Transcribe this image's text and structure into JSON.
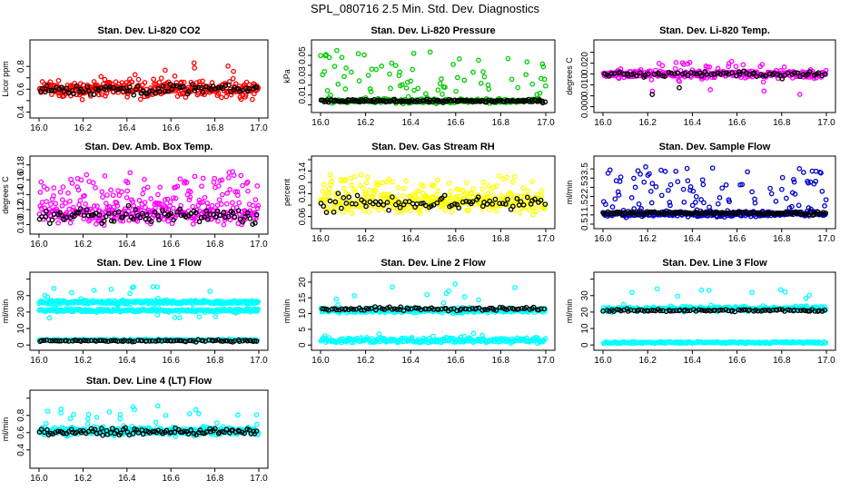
{
  "figure_title": "SPL_080716  2.5 Min. Std. Dev. Diagnostics",
  "chart_data": [
    {
      "type": "scatter",
      "title": "Stan. Dev. Li-820 CO2",
      "ylabel": "Licor ppm",
      "xlim": [
        16.0,
        17.0
      ],
      "ylim": [
        0.38,
        1.0
      ],
      "x_ticks": [
        "16.0",
        "16.2",
        "16.4",
        "16.6",
        "16.8",
        "17.0"
      ],
      "y_ticks": [
        0.4,
        0.5,
        0.6,
        0.7,
        0.8
      ],
      "y_tick_labels": [
        "0.4",
        "",
        "0.6",
        "",
        "0.8"
      ],
      "series": [
        {
          "name": "main",
          "color": "#ff0000",
          "base": 0.6,
          "noise": 0.06,
          "extra": 0.2,
          "outlier_rate": 0.05,
          "n": 320
        },
        {
          "name": "black",
          "color": "#000000",
          "base": 0.6,
          "noise": 0.04,
          "extra": 0.0,
          "outlier_rate": 0.0,
          "n": 90
        }
      ]
    },
    {
      "type": "scatter",
      "title": "Stan. Dev. Li-820 Pressure",
      "ylabel": "kPa",
      "xlim": [
        16.0,
        17.0
      ],
      "ylim": [
        -0.004,
        0.062
      ],
      "x_ticks": [
        "16.0",
        "16.2",
        "16.4",
        "16.6",
        "16.8",
        "17.0"
      ],
      "y_ticks": [
        0.0,
        0.01,
        0.02,
        0.03,
        0.04,
        0.05
      ],
      "y_tick_labels": [
        "",
        "0.01",
        "",
        "0.03",
        "",
        "0.05"
      ],
      "series": [
        {
          "name": "main",
          "color": "#00cc00",
          "base": 0.004,
          "noise": 0.002,
          "extra": 0.05,
          "outlier_rate": 0.35,
          "n": 260
        },
        {
          "name": "black",
          "color": "#000000",
          "base": 0.004,
          "noise": 0.0012,
          "extra": 0.0,
          "outlier_rate": 0.0,
          "n": 150
        }
      ]
    },
    {
      "type": "scatter",
      "title": "Stan. Dev. Li-820 Temp.",
      "ylabel": "degrees C",
      "xlim": [
        16.0,
        17.0
      ],
      "ylim": [
        -0.001,
        0.029
      ],
      "x_ticks": [
        "16.0",
        "16.2",
        "16.4",
        "16.6",
        "16.8",
        "17.0"
      ],
      "y_ticks": [
        0.0,
        0.005,
        0.01,
        0.015,
        0.02,
        0.025
      ],
      "y_tick_labels": [
        "0.000",
        "",
        "0.010",
        "",
        "0.020",
        ""
      ],
      "series": [
        {
          "name": "main",
          "color": "#ff00ff",
          "base": 0.015,
          "noise": 0.0015,
          "extra": 0.006,
          "outlier_rate": 0.1,
          "n": 300,
          "wave": "temp"
        },
        {
          "name": "black",
          "color": "#000000",
          "base": 0.015,
          "noise": 0.001,
          "extra": 0.0,
          "outlier_rate": 0.0,
          "n": 80,
          "wave": "temp"
        }
      ]
    },
    {
      "type": "scatter",
      "title": "Stan. Dev. Amb. Box Temp.",
      "ylabel": "degrees C",
      "xlim": [
        16.0,
        17.0
      ],
      "ylim": [
        0.092,
        0.187
      ],
      "x_ticks": [
        "16.0",
        "16.2",
        "16.4",
        "16.6",
        "16.8",
        "17.0"
      ],
      "y_ticks": [
        0.1,
        0.12,
        0.14,
        0.16,
        0.18
      ],
      "y_tick_labels": [
        "0.10",
        "0.12",
        "0.14",
        "0.16",
        "0.18"
      ],
      "series": [
        {
          "name": "main",
          "color": "#ff00ff",
          "base": 0.115,
          "noise": 0.012,
          "extra": 0.05,
          "outlier_rate": 0.3,
          "n": 360
        },
        {
          "name": "black",
          "color": "#000000",
          "base": 0.112,
          "noise": 0.008,
          "extra": 0.0,
          "outlier_rate": 0.0,
          "n": 90
        }
      ]
    },
    {
      "type": "scatter",
      "title": "Stan. Dev. Gas Stream RH",
      "ylabel": "percent",
      "xlim": [
        16.0,
        17.0
      ],
      "ylim": [
        0.045,
        0.16
      ],
      "x_ticks": [
        "16.0",
        "16.2",
        "16.4",
        "16.6",
        "16.8",
        "17.0"
      ],
      "y_ticks": [
        0.06,
        0.08,
        0.1,
        0.12,
        0.14,
        0.16
      ],
      "y_tick_labels": [
        "0.06",
        "",
        "0.10",
        "",
        "0.14",
        ""
      ],
      "series": [
        {
          "name": "main",
          "color": "#ffff00",
          "base": 0.085,
          "noise": 0.015,
          "extra": 0.04,
          "outlier_rate": 0.3,
          "n": 380
        },
        {
          "name": "black",
          "color": "#000000",
          "base": 0.085,
          "noise": 0.012,
          "extra": 0.0,
          "outlier_rate": 0.0,
          "n": 80
        }
      ]
    },
    {
      "type": "scatter",
      "title": "Stan. Dev. Sample Flow",
      "ylabel": "ml/min",
      "xlim": [
        16.0,
        17.0
      ],
      "ylim": [
        0.45,
        4.0
      ],
      "x_ticks": [
        "16.0",
        "16.2",
        "16.4",
        "16.6",
        "16.8",
        "17.0"
      ],
      "y_ticks": [
        0.5,
        1.0,
        1.5,
        2.0,
        2.5,
        3.0,
        3.5
      ],
      "y_tick_labels": [
        "0.5",
        "1",
        "1.5",
        "2",
        "2.5",
        "3",
        "3.5"
      ],
      "series": [
        {
          "name": "main",
          "color": "#0000cc",
          "base": 1.05,
          "noise": 0.12,
          "extra": 2.5,
          "outlier_rate": 0.3,
          "n": 360
        },
        {
          "name": "black",
          "color": "#000000",
          "base": 1.1,
          "noise": 0.08,
          "extra": 0.0,
          "outlier_rate": 0.0,
          "n": 120
        }
      ]
    },
    {
      "type": "scatter",
      "title": "Stan. Dev. Line 1 Flow",
      "ylabel": "ml/min",
      "xlim": [
        16.0,
        17.0
      ],
      "ylim": [
        -1,
        42
      ],
      "x_ticks": [
        "16.0",
        "16.2",
        "16.4",
        "16.6",
        "16.8",
        "17.0"
      ],
      "y_ticks": [
        0,
        10,
        20,
        30,
        40
      ],
      "y_tick_labels": [
        "0",
        "10",
        "20",
        "30",
        ""
      ],
      "series": [
        {
          "name": "band_upper",
          "color": "#00ffff",
          "base": 26,
          "noise": 1.0,
          "extra": 10,
          "outlier_rate": 0.04,
          "n": 300
        },
        {
          "name": "band_lower",
          "color": "#00ffff",
          "base": 21,
          "noise": 0.8,
          "extra": -5,
          "outlier_rate": 0.03,
          "n": 260
        },
        {
          "name": "band_bottom",
          "color": "#00ffff",
          "base": 3,
          "noise": 0.5,
          "extra": 0.0,
          "outlier_rate": 0.0,
          "n": 160
        },
        {
          "name": "black",
          "color": "#000000",
          "base": 2.5,
          "noise": 0.5,
          "extra": 0.0,
          "outlier_rate": 0.0,
          "n": 90
        }
      ]
    },
    {
      "type": "scatter",
      "title": "Stan. Dev. Line 2 Flow",
      "ylabel": "ml/min",
      "xlim": [
        16.0,
        17.0
      ],
      "ylim": [
        -0.5,
        22
      ],
      "x_ticks": [
        "16.0",
        "16.2",
        "16.4",
        "16.6",
        "16.8",
        "17.0"
      ],
      "y_ticks": [
        0,
        5,
        10,
        15,
        20
      ],
      "y_tick_labels": [
        "0",
        "5",
        "10",
        "15",
        "20"
      ],
      "series": [
        {
          "name": "band_upper",
          "color": "#00ffff",
          "base": 11,
          "noise": 0.6,
          "extra": 8,
          "outlier_rate": 0.05,
          "n": 320
        },
        {
          "name": "band_bottom",
          "color": "#00ffff",
          "base": 1.5,
          "noise": 0.7,
          "extra": 2.0,
          "outlier_rate": 0.1,
          "n": 240
        },
        {
          "name": "black",
          "color": "#000000",
          "base": 11.5,
          "noise": 0.5,
          "extra": 0.0,
          "outlier_rate": 0.0,
          "n": 90
        }
      ]
    },
    {
      "type": "scatter",
      "title": "Stan. Dev. Line 3 Flow",
      "ylabel": "ml/min",
      "xlim": [
        16.0,
        17.0
      ],
      "ylim": [
        -1,
        42
      ],
      "x_ticks": [
        "16.0",
        "16.2",
        "16.4",
        "16.6",
        "16.8",
        "17.0"
      ],
      "y_ticks": [
        0,
        10,
        20,
        30,
        40
      ],
      "y_tick_labels": [
        "0",
        "10",
        "20",
        "30",
        ""
      ],
      "series": [
        {
          "name": "band_upper",
          "color": "#00ffff",
          "base": 22,
          "noise": 1.2,
          "extra": 12,
          "outlier_rate": 0.04,
          "n": 330
        },
        {
          "name": "band_bottom",
          "color": "#00ffff",
          "base": 1.5,
          "noise": 0.5,
          "extra": 0.0,
          "outlier_rate": 0.0,
          "n": 200
        },
        {
          "name": "black",
          "color": "#000000",
          "base": 21,
          "noise": 0.6,
          "extra": 0.0,
          "outlier_rate": 0.0,
          "n": 90
        }
      ]
    },
    {
      "type": "scatter",
      "title": "Stan. Dev. Line 4 (LT) Flow",
      "ylabel": "ml/min",
      "xlim": [
        16.0,
        17.0
      ],
      "ylim": [
        0.23,
        1.05
      ],
      "x_ticks": [
        "16.0",
        "16.2",
        "16.4",
        "16.6",
        "16.8",
        "17.0"
      ],
      "y_ticks": [
        0.4,
        0.6,
        0.8,
        1.0
      ],
      "y_tick_labels": [
        "0.4",
        "0.6",
        "0.8",
        ""
      ],
      "series": [
        {
          "name": "main",
          "color": "#00ffff",
          "base": 0.62,
          "noise": 0.04,
          "extra": 0.3,
          "outlier_rate": 0.08,
          "n": 360
        },
        {
          "name": "black",
          "color": "#000000",
          "base": 0.61,
          "noise": 0.03,
          "extra": 0.0,
          "outlier_rate": 0.0,
          "n": 100
        }
      ]
    }
  ]
}
